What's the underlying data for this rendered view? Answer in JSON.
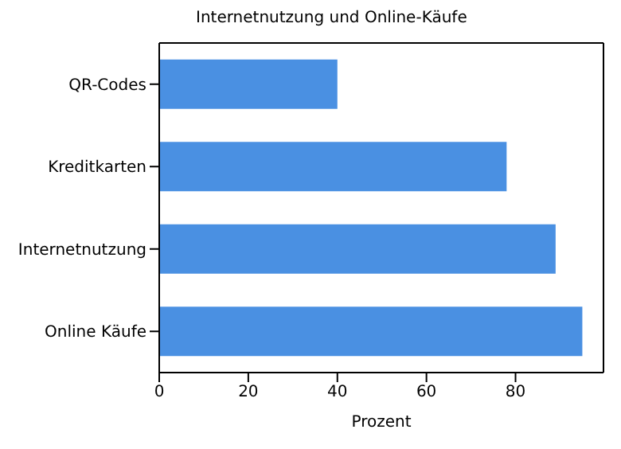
{
  "chart_data": {
    "type": "bar",
    "orientation": "horizontal",
    "title": "Internetnutzung und Online-Käufe",
    "xlabel": "Prozent",
    "categories": [
      "QR-Codes",
      "Kreditkarten",
      "Internetnutzung",
      "Online Käufe"
    ],
    "values": [
      40,
      78,
      89,
      95
    ],
    "color": "#4a90e2",
    "xlim": [
      0,
      99.75
    ],
    "xticks": [
      0,
      20,
      40,
      60,
      80
    ]
  }
}
